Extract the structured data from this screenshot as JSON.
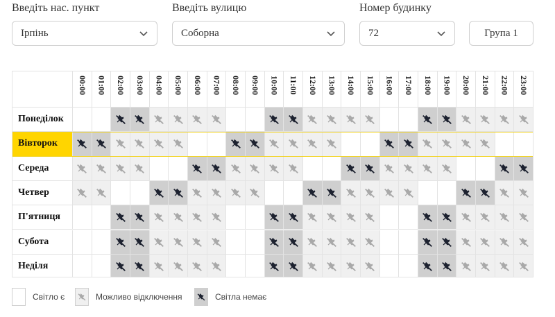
{
  "filters": {
    "settlement": {
      "label": "Введіть нас. пункт",
      "value": "Ірпінь"
    },
    "street": {
      "label": "Введіть вулицю",
      "value": "Соборна"
    },
    "house": {
      "label": "Номер будинку",
      "value": "72"
    },
    "group_button": "Група 1"
  },
  "hours": [
    "00:00",
    "01:00",
    "02:00",
    "03:00",
    "04:00",
    "05:00",
    "06:00",
    "07:00",
    "08:00",
    "09:00",
    "10:00",
    "11:00",
    "12:00",
    "13:00",
    "14:00",
    "15:00",
    "16:00",
    "17:00",
    "18:00",
    "19:00",
    "20:00",
    "21:00",
    "22:00",
    "23:00"
  ],
  "days": [
    {
      "name": "Понеділок",
      "today": false,
      "states": [
        0,
        0,
        2,
        2,
        1,
        1,
        1,
        1,
        0,
        0,
        2,
        2,
        1,
        1,
        1,
        1,
        0,
        0,
        2,
        2,
        1,
        1,
        1,
        1
      ]
    },
    {
      "name": "Вівторок",
      "today": true,
      "states": [
        2,
        2,
        1,
        1,
        1,
        1,
        0,
        0,
        2,
        2,
        1,
        1,
        1,
        1,
        0,
        0,
        2,
        2,
        1,
        1,
        1,
        1,
        0,
        0
      ]
    },
    {
      "name": "Середа",
      "today": false,
      "states": [
        1,
        1,
        1,
        1,
        0,
        0,
        2,
        2,
        1,
        1,
        1,
        1,
        0,
        0,
        2,
        2,
        1,
        1,
        1,
        1,
        0,
        0,
        2,
        2
      ]
    },
    {
      "name": "Четвер",
      "today": false,
      "states": [
        1,
        1,
        0,
        0,
        2,
        2,
        1,
        1,
        1,
        1,
        0,
        0,
        2,
        2,
        1,
        1,
        1,
        1,
        0,
        0,
        2,
        2,
        1,
        1
      ]
    },
    {
      "name": "П'ятниця",
      "today": false,
      "states": [
        0,
        0,
        2,
        2,
        1,
        1,
        1,
        1,
        0,
        0,
        2,
        2,
        1,
        1,
        1,
        1,
        0,
        0,
        2,
        2,
        1,
        1,
        1,
        1
      ]
    },
    {
      "name": "Субота",
      "today": false,
      "states": [
        0,
        0,
        2,
        2,
        1,
        1,
        1,
        1,
        0,
        0,
        2,
        2,
        1,
        1,
        1,
        1,
        0,
        0,
        2,
        2,
        1,
        1,
        1,
        1
      ]
    },
    {
      "name": "Неділя",
      "today": false,
      "states": [
        0,
        0,
        2,
        2,
        1,
        1,
        1,
        1,
        0,
        0,
        2,
        2,
        1,
        1,
        1,
        1,
        0,
        0,
        2,
        2,
        1,
        1,
        1,
        1
      ]
    }
  ],
  "legend": [
    {
      "label": "Світло є",
      "state": 0
    },
    {
      "label": "Можливо відключення",
      "state": 1
    },
    {
      "label": "Світла немає",
      "state": 2
    }
  ],
  "colors": {
    "today_highlight": "#ffd500",
    "possible_outage_bg": "#f0f0f0",
    "no_power_bg": "#cfcfcf",
    "icon_possible": "#a9a9a9",
    "icon_no_power": "#1d2230"
  },
  "icons": {
    "outage": "no-power-plug-icon",
    "dropdown": "chevron-down-icon"
  }
}
